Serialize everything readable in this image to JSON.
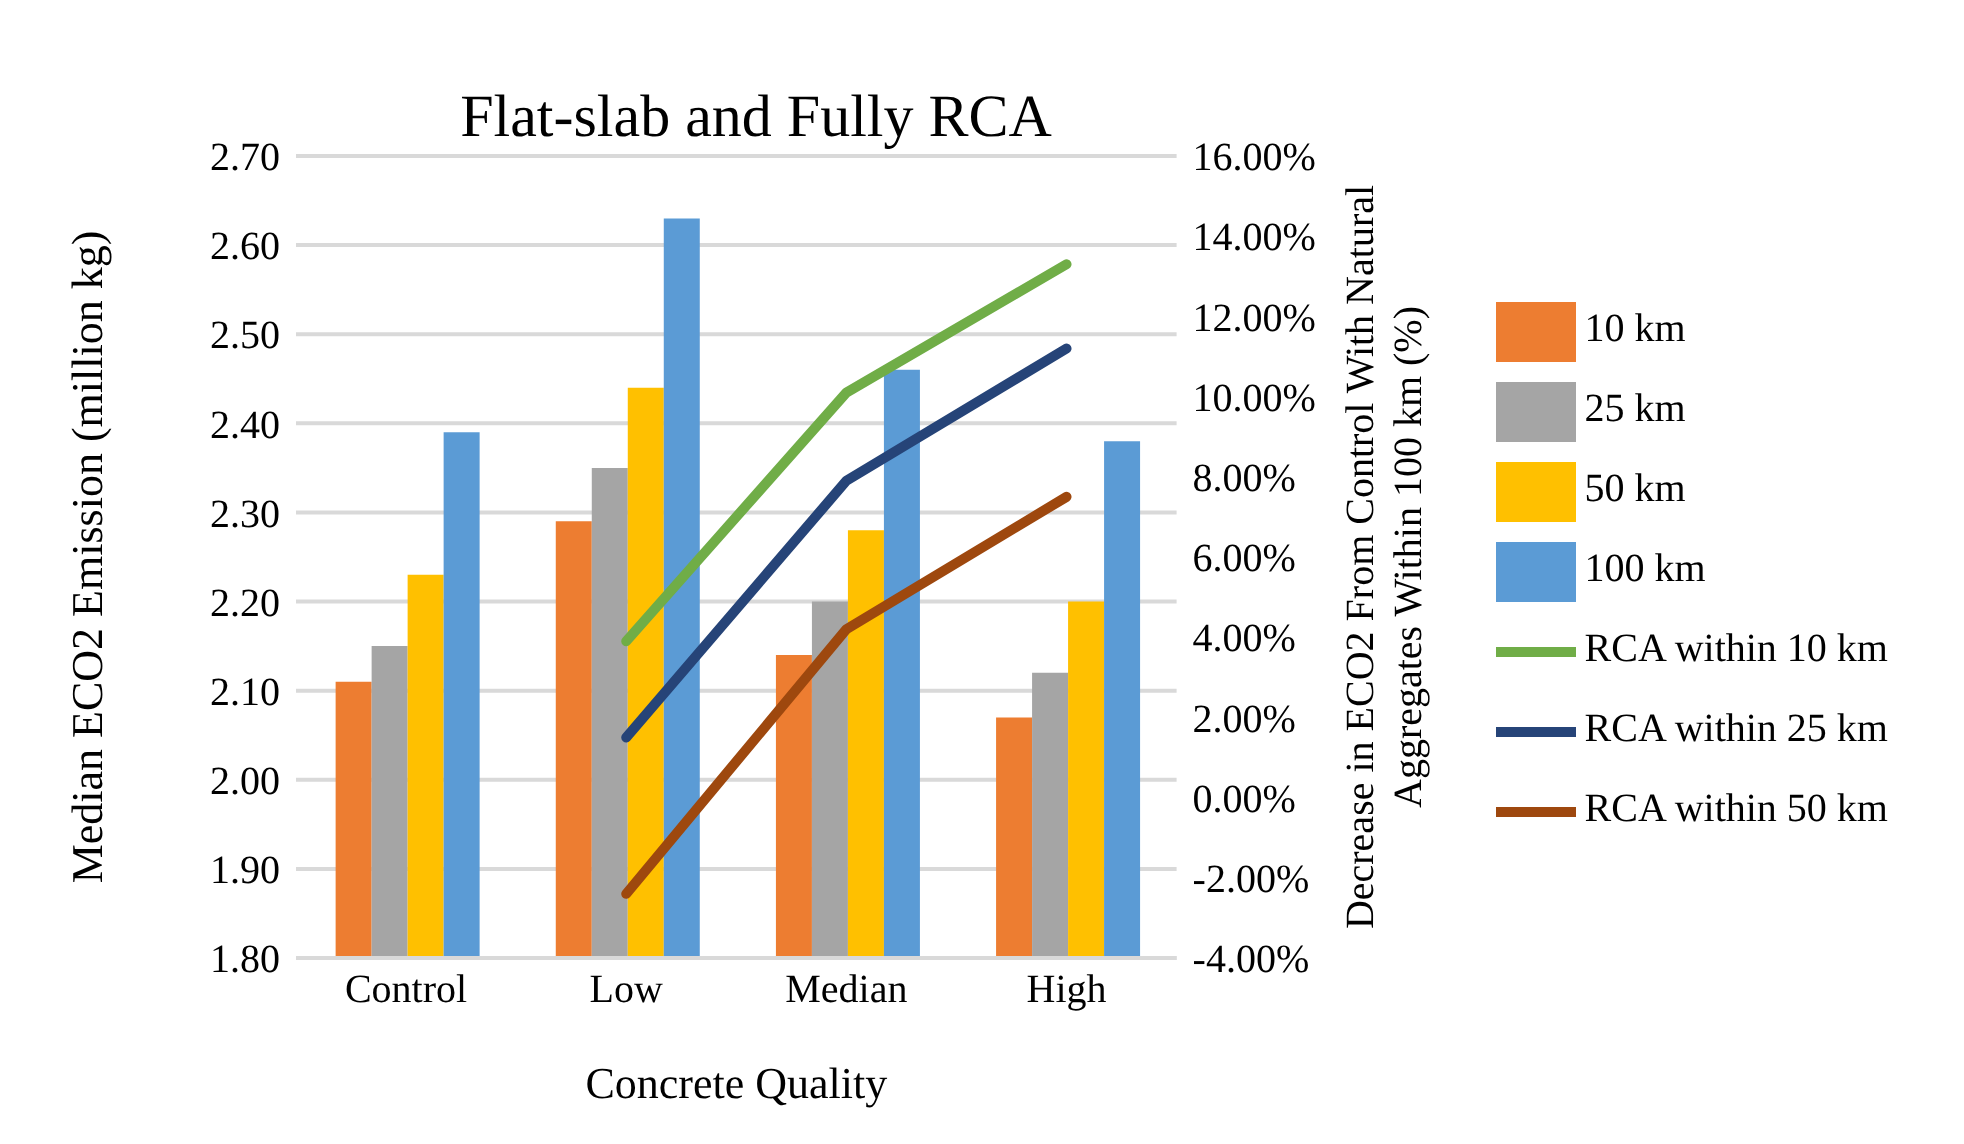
{
  "chart_data": {
    "type": "bar",
    "title": "Flat-slab and Fully RCA",
    "xlabel": "Concrete Quality",
    "ylabel": "Median ECO2 Emission (million kg)",
    "y2label": "Decrease in ECO2 From Control With Natural Aggregates Within 100 km (%)",
    "categories": [
      "Control",
      "Low",
      "Median",
      "High"
    ],
    "series": [
      {
        "name": "10 km",
        "color": "#ed7d31",
        "values": [
          2.11,
          2.29,
          2.14,
          2.07
        ]
      },
      {
        "name": "25 km",
        "color": "#a5a5a5",
        "values": [
          2.15,
          2.35,
          2.2,
          2.12
        ]
      },
      {
        "name": "50 km",
        "color": "#ffc000",
        "values": [
          2.23,
          2.44,
          2.28,
          2.2
        ]
      },
      {
        "name": "100 km",
        "color": "#5b9bd5",
        "values": [
          2.39,
          2.63,
          2.46,
          2.38
        ]
      },
      {
        "name": "RCA within 10 km",
        "type": "line",
        "axis": "y2",
        "color": "#70ad47",
        "values": [
          null,
          3.9,
          10.1,
          13.3
        ]
      },
      {
        "name": "RCA within 25 km",
        "type": "line",
        "axis": "y2",
        "color": "#264478",
        "values": [
          null,
          1.5,
          7.9,
          11.2
        ]
      },
      {
        "name": "RCA within 50 km",
        "type": "line",
        "axis": "y2",
        "color": "#9e480e",
        "values": [
          null,
          -2.4,
          4.2,
          7.5
        ]
      }
    ],
    "ylim": [
      1.8,
      2.7
    ],
    "yticks": [
      {
        "value": 1.8,
        "label": "1.80"
      },
      {
        "value": 1.9,
        "label": "1.90"
      },
      {
        "value": 2.0,
        "label": "2.00"
      },
      {
        "value": 2.1,
        "label": "2.10"
      },
      {
        "value": 2.2,
        "label": "2.20"
      },
      {
        "value": 2.3,
        "label": "2.30"
      },
      {
        "value": 2.4,
        "label": "2.40"
      },
      {
        "value": 2.5,
        "label": "2.50"
      },
      {
        "value": 2.6,
        "label": "2.60"
      },
      {
        "value": 2.7,
        "label": "2.70"
      }
    ],
    "y2lim": [
      -4,
      16
    ],
    "y2ticks": [
      {
        "value": -4,
        "label": "-4.00%"
      },
      {
        "value": -2,
        "label": "-2.00%"
      },
      {
        "value": 0,
        "label": "0.00%"
      },
      {
        "value": 2,
        "label": "2.00%"
      },
      {
        "value": 4,
        "label": "4.00%"
      },
      {
        "value": 6,
        "label": "6.00%"
      },
      {
        "value": 8,
        "label": "8.00%"
      },
      {
        "value": 10,
        "label": "10.00%"
      },
      {
        "value": 12,
        "label": "12.00%"
      },
      {
        "value": 14,
        "label": "14.00%"
      },
      {
        "value": 16,
        "label": "16.00%"
      }
    ],
    "grid": "y",
    "legend": "right",
    "marker": "none",
    "line_style": "solid"
  }
}
